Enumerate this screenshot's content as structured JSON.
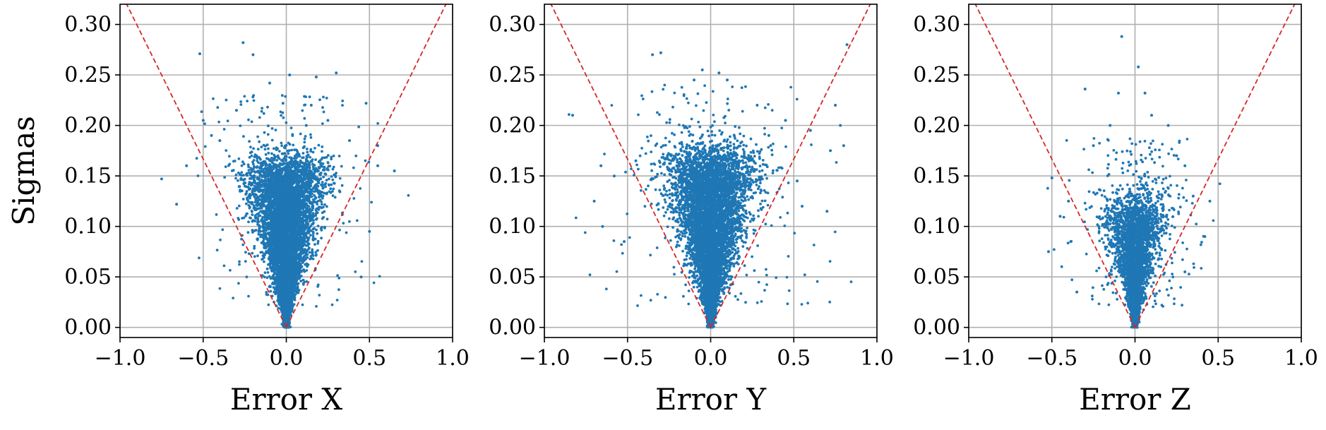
{
  "colors": {
    "points": "#1f77b4",
    "reference_lines": "#d62728",
    "grid": "#b0b0b0"
  },
  "chart_data": [
    {
      "type": "scatter",
      "xlabel": "Error X",
      "ylabel": "Sigmas",
      "xlim": [
        -1.0,
        1.0
      ],
      "ylim": [
        -0.01,
        0.32
      ],
      "xticks": [
        "−1.0",
        "−0.5",
        "0.0",
        "0.5",
        "1.0"
      ],
      "yticks": [
        "0.00",
        "0.05",
        "0.10",
        "0.15",
        "0.20",
        "0.25",
        "0.30"
      ],
      "xtick_values": [
        -1.0,
        -0.5,
        0.0,
        0.5,
        1.0
      ],
      "ytick_values": [
        0.0,
        0.05,
        0.1,
        0.15,
        0.2,
        0.25,
        0.3
      ],
      "grid": true,
      "reference_lines": [
        {
          "style": "dashed",
          "x": [
            0.0,
            -0.96
          ],
          "y": [
            0.0,
            0.32
          ]
        },
        {
          "style": "dashed",
          "x": [
            0.0,
            0.96
          ],
          "y": [
            0.0,
            0.32
          ]
        }
      ],
      "dense_cloud": {
        "x_center": 0.0,
        "x_halfwidth_at_top": 0.22,
        "y_min": 0.0,
        "y_max": 0.16
      },
      "outliers": [
        [
          -0.26,
          0.282
        ],
        [
          -0.52,
          0.271
        ],
        [
          -0.2,
          0.27
        ],
        [
          -0.1,
          0.242
        ],
        [
          0.18,
          0.248
        ],
        [
          0.3,
          0.252
        ],
        [
          0.02,
          0.25
        ],
        [
          -0.02,
          0.222
        ],
        [
          -0.5,
          0.205
        ],
        [
          -0.75,
          0.147
        ],
        [
          -0.66,
          0.122
        ],
        [
          -0.6,
          0.16
        ],
        [
          0.48,
          0.222
        ],
        [
          0.55,
          0.16
        ],
        [
          0.65,
          0.155
        ],
        [
          0.5,
          0.095
        ],
        [
          0.45,
          0.05
        ],
        [
          0.25,
          0.205
        ],
        [
          -0.45,
          0.19
        ],
        [
          0.38,
          0.185
        ],
        [
          0.55,
          0.18
        ],
        [
          -0.4,
          0.185
        ],
        [
          0.12,
          0.2
        ],
        [
          -0.3,
          0.215
        ],
        [
          0.15,
          0.22
        ]
      ]
    },
    {
      "type": "scatter",
      "xlabel": "Error Y",
      "ylabel": "",
      "xlim": [
        -1.0,
        1.0
      ],
      "ylim": [
        -0.01,
        0.32
      ],
      "xticks": [
        "−1.0",
        "−0.5",
        "0.0",
        "0.5",
        "1.0"
      ],
      "yticks": [
        "0.00",
        "0.05",
        "0.10",
        "0.15",
        "0.20",
        "0.25",
        "0.30"
      ],
      "xtick_values": [
        -1.0,
        -0.5,
        0.0,
        0.5,
        1.0
      ],
      "ytick_values": [
        0.0,
        0.05,
        0.1,
        0.15,
        0.2,
        0.25,
        0.3
      ],
      "grid": true,
      "reference_lines": [
        {
          "style": "dashed",
          "x": [
            0.0,
            -0.96
          ],
          "y": [
            0.0,
            0.32
          ]
        },
        {
          "style": "dashed",
          "x": [
            0.0,
            0.96
          ],
          "y": [
            0.0,
            0.32
          ]
        }
      ],
      "dense_cloud": {
        "x_center": 0.0,
        "x_halfwidth_at_top": 0.26,
        "y_min": 0.0,
        "y_max": 0.17
      },
      "outliers": [
        [
          -0.83,
          0.21
        ],
        [
          -0.35,
          0.27
        ],
        [
          -0.3,
          0.272
        ],
        [
          0.82,
          0.28
        ],
        [
          0.75,
          0.22
        ],
        [
          0.78,
          0.2
        ],
        [
          0.72,
          0.175
        ],
        [
          0.8,
          0.18
        ],
        [
          0.6,
          0.195
        ],
        [
          0.52,
          0.145
        ],
        [
          0.55,
          0.12
        ],
        [
          0.7,
          0.115
        ],
        [
          -0.7,
          0.125
        ],
        [
          -0.65,
          0.1
        ],
        [
          -0.66,
          0.16
        ],
        [
          -0.58,
          0.15
        ],
        [
          -0.52,
          0.085
        ],
        [
          -0.05,
          0.255
        ],
        [
          0.05,
          0.252
        ],
        [
          -0.1,
          0.245
        ],
        [
          0.1,
          0.245
        ],
        [
          0.28,
          0.22
        ],
        [
          -0.45,
          0.165
        ],
        [
          0.45,
          0.205
        ],
        [
          0.35,
          0.19
        ]
      ]
    },
    {
      "type": "scatter",
      "xlabel": "Error Z",
      "ylabel": "",
      "xlim": [
        -1.0,
        1.0
      ],
      "ylim": [
        -0.01,
        0.32
      ],
      "xticks": [
        "−1.0",
        "−0.5",
        "0.0",
        "0.5",
        "1.0"
      ],
      "yticks": [
        "0.00",
        "0.05",
        "0.10",
        "0.15",
        "0.20",
        "0.25",
        "0.30"
      ],
      "xtick_values": [
        -1.0,
        -0.5,
        0.0,
        0.5,
        1.0
      ],
      "ytick_values": [
        0.0,
        0.05,
        0.1,
        0.15,
        0.2,
        0.25,
        0.3
      ],
      "grid": true,
      "reference_lines": [
        {
          "style": "dashed",
          "x": [
            0.0,
            -0.96
          ],
          "y": [
            0.0,
            0.32
          ]
        },
        {
          "style": "dashed",
          "x": [
            0.0,
            0.96
          ],
          "y": [
            0.0,
            0.32
          ]
        }
      ],
      "dense_cloud": {
        "x_center": 0.0,
        "x_halfwidth_at_top": 0.17,
        "y_min": 0.0,
        "y_max": 0.12
      },
      "outliers": [
        [
          -0.08,
          0.288
        ],
        [
          0.02,
          0.258
        ],
        [
          -0.3,
          0.236
        ],
        [
          -0.1,
          0.232
        ],
        [
          0.06,
          0.232
        ],
        [
          -0.5,
          0.148
        ],
        [
          -0.52,
          0.075
        ],
        [
          0.3,
          0.16
        ],
        [
          0.45,
          0.125
        ],
        [
          0.42,
          0.09
        ],
        [
          -0.45,
          0.11
        ],
        [
          -0.4,
          0.125
        ],
        [
          0.35,
          0.13
        ],
        [
          -0.35,
          0.035
        ],
        [
          0.3,
          0.055
        ],
        [
          0.2,
          0.2
        ],
        [
          -0.15,
          0.2
        ],
        [
          0.1,
          0.21
        ],
        [
          -0.25,
          0.18
        ],
        [
          0.25,
          0.17
        ]
      ]
    }
  ]
}
